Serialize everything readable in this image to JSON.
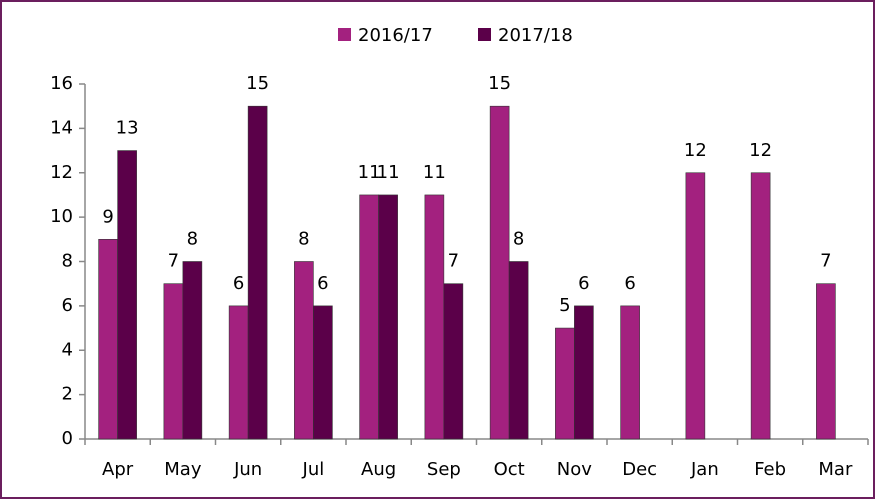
{
  "chart_data": {
    "type": "bar",
    "categories": [
      "Apr",
      "May",
      "Jun",
      "Jul",
      "Aug",
      "Sep",
      "Oct",
      "Nov",
      "Dec",
      "Jan",
      "Feb",
      "Mar"
    ],
    "series": [
      {
        "name": "2016/17",
        "color": "#a3217f",
        "values": [
          9,
          7,
          6,
          8,
          11,
          11,
          15,
          5,
          6,
          12,
          12,
          7
        ]
      },
      {
        "name": "2017/18",
        "color": "#5b0049",
        "values": [
          13,
          8,
          15,
          6,
          11,
          7,
          8,
          6,
          null,
          null,
          null,
          null
        ]
      }
    ],
    "ylim": [
      0,
      16
    ],
    "yticks": [
      0,
      2,
      4,
      6,
      8,
      10,
      12,
      14,
      16
    ],
    "grid": false,
    "legend": "top"
  }
}
